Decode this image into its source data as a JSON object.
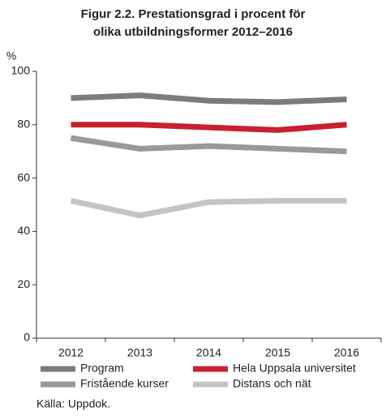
{
  "chart_data": {
    "type": "line",
    "title": [
      "Figur 2.2. Prestationsgrad i procent för",
      "olika utbildningsformer 2012–2016"
    ],
    "y_label": "%",
    "categories": [
      "2012",
      "2013",
      "2014",
      "2015",
      "2016"
    ],
    "series": [
      {
        "name": "Program",
        "color": "#7b7b80",
        "values": [
          90,
          91,
          89,
          88.5,
          89.5
        ]
      },
      {
        "name": "Hela Uppsala universitet",
        "color": "#c8202f",
        "values": [
          80,
          80,
          79,
          78,
          80
        ]
      },
      {
        "name": "Fristående kurser",
        "color": "#98989d",
        "values": [
          75,
          71,
          72,
          71,
          70
        ]
      },
      {
        "name": "Distans och nät",
        "color": "#c4c4c8",
        "values": [
          51.5,
          46,
          51,
          51.5,
          51.5
        ]
      }
    ],
    "ylim": [
      0,
      100
    ],
    "yticks": [
      0,
      20,
      40,
      60,
      80,
      100
    ],
    "source": "Källa: Uppdok."
  }
}
